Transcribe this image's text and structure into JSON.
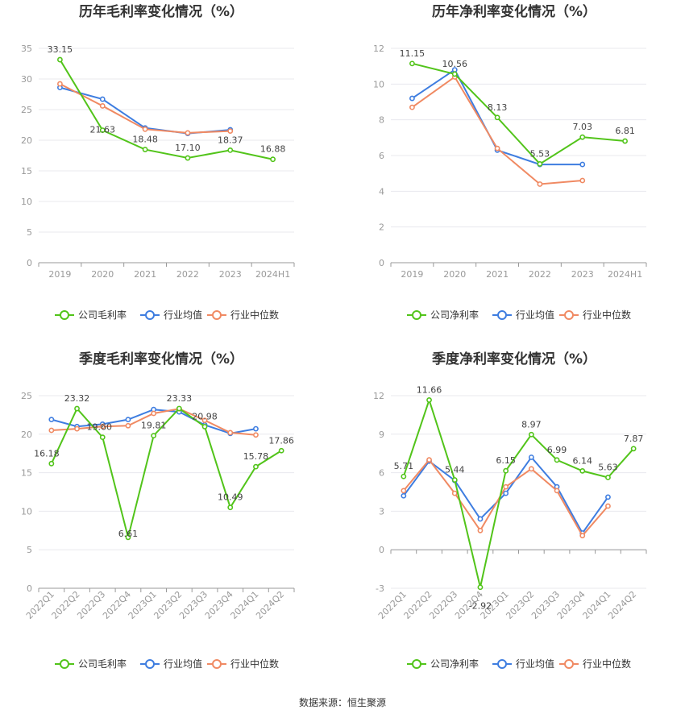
{
  "colors": {
    "company": "#52c41a",
    "avg": "#3e7de0",
    "median": "#f08a63",
    "grid": "#e8e8ee",
    "axis": "#999999"
  },
  "legend": {
    "company_gross": "公司毛利率",
    "company_net": "公司净利率",
    "avg": "行业均值",
    "median": "行业中位数"
  },
  "source": "数据来源：恒生聚源",
  "chart_data": [
    {
      "type": "line",
      "title": "历年毛利率变化情况（%）",
      "categories": [
        "2019",
        "2020",
        "2021",
        "2022",
        "2023",
        "2024H1"
      ],
      "ylim": [
        0,
        35
      ],
      "yticks": [
        0,
        5,
        10,
        15,
        20,
        25,
        30,
        35
      ],
      "grid": true,
      "legend_position": "bottom",
      "series": [
        {
          "name": "公司毛利率",
          "role": "company",
          "values": [
            33.15,
            21.63,
            18.48,
            17.1,
            18.37,
            16.88
          ],
          "labels": [
            "33.15",
            "21.63",
            "18.48",
            "17.10",
            "18.37",
            "16.88"
          ]
        },
        {
          "name": "行业均值",
          "role": "avg",
          "values": [
            28.6,
            26.7,
            22.0,
            21.1,
            21.7,
            null
          ]
        },
        {
          "name": "行业中位数",
          "role": "median",
          "values": [
            29.2,
            25.6,
            21.8,
            21.2,
            21.5,
            null
          ]
        }
      ]
    },
    {
      "type": "line",
      "title": "历年净利率变化情况（%）",
      "categories": [
        "2019",
        "2020",
        "2021",
        "2022",
        "2023",
        "2024H1"
      ],
      "ylim": [
        0,
        12
      ],
      "yticks": [
        0,
        2,
        4,
        6,
        8,
        10,
        12
      ],
      "grid": true,
      "legend_position": "bottom",
      "series": [
        {
          "name": "公司净利率",
          "role": "company",
          "values": [
            11.15,
            10.56,
            8.13,
            5.53,
            7.03,
            6.81
          ],
          "labels": [
            "11.15",
            "10.56",
            "8.13",
            "5.53",
            "7.03",
            "6.81"
          ]
        },
        {
          "name": "行业均值",
          "role": "avg",
          "values": [
            9.2,
            10.8,
            6.3,
            5.5,
            5.5,
            null
          ]
        },
        {
          "name": "行业中位数",
          "role": "median",
          "values": [
            8.7,
            10.4,
            6.4,
            4.4,
            4.6,
            null
          ]
        }
      ]
    },
    {
      "type": "line",
      "title": "季度毛利率变化情况（%）",
      "categories": [
        "2022Q1",
        "2022Q2",
        "2022Q3",
        "2022Q4",
        "2023Q1",
        "2023Q2",
        "2023Q3",
        "2023Q4",
        "2024Q1",
        "2024Q2"
      ],
      "ylim": [
        0,
        25
      ],
      "yticks": [
        0,
        5,
        10,
        15,
        20,
        25
      ],
      "grid": true,
      "legend_position": "bottom",
      "rotate_xticks": true,
      "series": [
        {
          "name": "公司毛利率",
          "role": "company",
          "values": [
            16.18,
            23.32,
            19.6,
            6.61,
            19.81,
            23.33,
            20.98,
            10.49,
            15.78,
            17.86
          ],
          "labels": [
            "16.18",
            "23.32",
            "19.60",
            "6.61",
            "19.81",
            "23.33",
            "20.98",
            "10.49",
            "15.78",
            "17.86"
          ]
        },
        {
          "name": "行业均值",
          "role": "avg",
          "values": [
            21.9,
            21.0,
            21.3,
            21.9,
            23.2,
            22.9,
            21.2,
            20.1,
            20.7,
            null
          ]
        },
        {
          "name": "行业中位数",
          "role": "median",
          "values": [
            20.5,
            20.7,
            21.0,
            21.1,
            22.7,
            23.3,
            21.8,
            20.2,
            19.9,
            null
          ]
        }
      ]
    },
    {
      "type": "line",
      "title": "季度净利率变化情况（%）",
      "categories": [
        "2022Q1",
        "2022Q2",
        "2022Q3",
        "2022Q4",
        "2023Q1",
        "2023Q2",
        "2023Q3",
        "2023Q4",
        "2024Q1",
        "2024Q2"
      ],
      "ylim": [
        -3,
        12
      ],
      "yticks": [
        -3,
        0,
        3,
        6,
        9,
        12
      ],
      "grid": true,
      "legend_position": "bottom",
      "rotate_xticks": true,
      "series": [
        {
          "name": "公司净利率",
          "role": "company",
          "values": [
            5.71,
            11.66,
            5.44,
            -2.92,
            6.15,
            8.97,
            6.99,
            6.14,
            5.63,
            7.87
          ],
          "labels": [
            "5.71",
            "11.66",
            "5.44",
            "-2.92",
            "6.15",
            "8.97",
            "6.99",
            "6.14",
            "5.63",
            "7.87"
          ]
        },
        {
          "name": "行业均值",
          "role": "avg",
          "values": [
            4.2,
            6.9,
            5.4,
            2.4,
            4.4,
            7.2,
            4.9,
            1.3,
            4.1,
            null
          ]
        },
        {
          "name": "行业中位数",
          "role": "median",
          "values": [
            4.6,
            7.0,
            4.4,
            1.5,
            4.9,
            6.3,
            4.6,
            1.1,
            3.4,
            null
          ]
        }
      ]
    }
  ]
}
